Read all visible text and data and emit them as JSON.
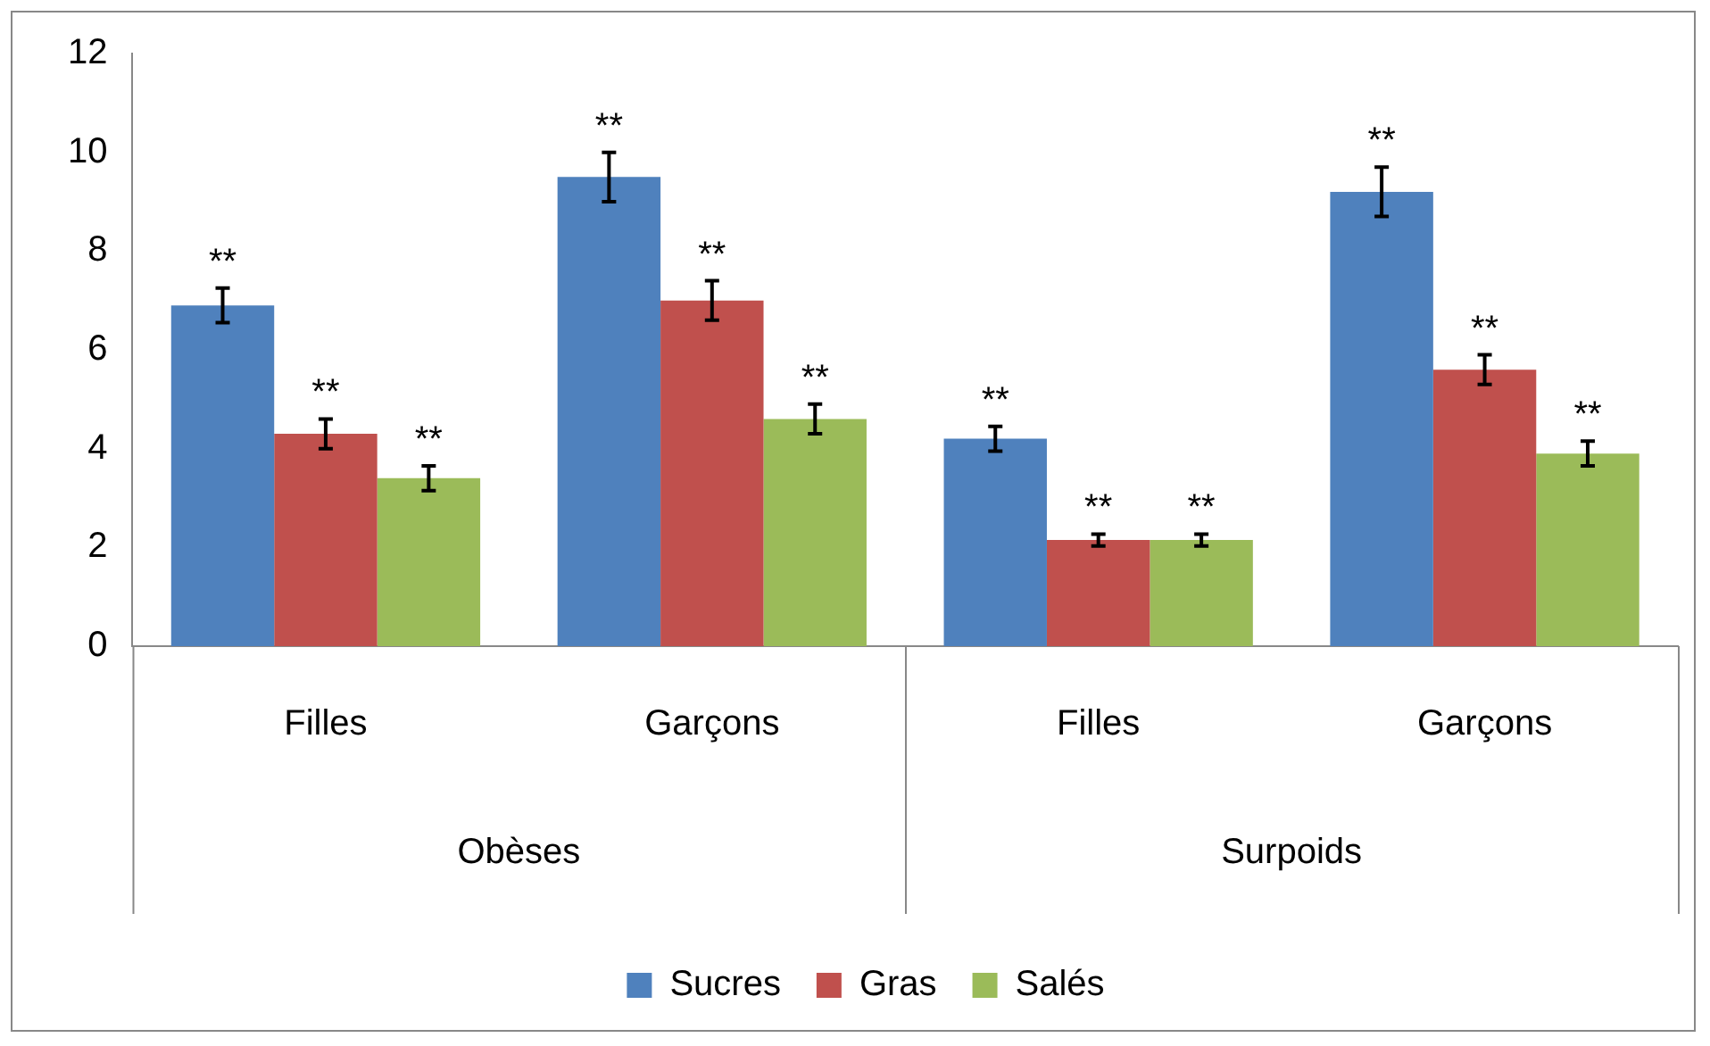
{
  "chart_data": {
    "type": "bar",
    "categories": [
      "Filles",
      "Garçons",
      "Filles",
      "Garçons"
    ],
    "series": [
      {
        "name": "Sucres",
        "color": "#4f81bd",
        "values": [
          6.9,
          9.5,
          4.2,
          9.2
        ],
        "errors": [
          0.35,
          0.5,
          0.25,
          0.5
        ]
      },
      {
        "name": "Gras",
        "color": "#c0504d",
        "values": [
          4.3,
          7.0,
          2.15,
          5.6
        ],
        "errors": [
          0.3,
          0.4,
          0.12,
          0.3
        ]
      },
      {
        "name": "Salés",
        "color": "#9bbb59",
        "values": [
          3.4,
          4.6,
          2.15,
          3.9
        ],
        "errors": [
          0.25,
          0.3,
          0.12,
          0.25
        ]
      }
    ],
    "annotations": [
      "**",
      "**",
      "**",
      "**",
      "**",
      "**",
      "**",
      "**",
      "**",
      "**",
      "**",
      "**",
      "Obèses",
      "Surpoids"
    ],
    "ylim": [
      0,
      12
    ],
    "yticks": [
      0,
      2,
      4,
      6,
      8,
      10,
      12
    ],
    "grid": false,
    "legend": "bottom"
  }
}
